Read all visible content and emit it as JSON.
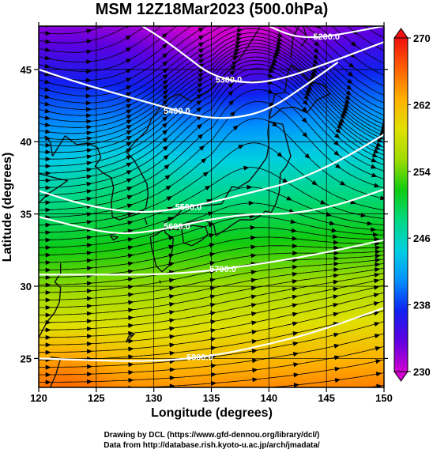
{
  "chart_data": {
    "type": "heatmap",
    "title": "MSM 12Z18Mar2023 (500.0hPa)",
    "xlabel": "Longitude (degrees)",
    "ylabel": "Latitude  (degrees)",
    "xlim": [
      120,
      150
    ],
    "ylim": [
      23,
      48
    ],
    "xticks": [
      "120",
      "125",
      "130",
      "135",
      "140",
      "145",
      "150"
    ],
    "yticks": [
      "25",
      "30",
      "35",
      "40",
      "45"
    ],
    "colorbar": {
      "range": [
        230,
        270
      ],
      "ticks": [
        "230",
        "238",
        "246",
        "254",
        "262",
        "270"
      ],
      "colors": [
        "#d000d0",
        "#6000e0",
        "#1020f0",
        "#0090ff",
        "#00d0e0",
        "#00d880",
        "#10cc10",
        "#a0dc00",
        "#e0e000",
        "#ffb000",
        "#ff6000",
        "#f01010"
      ]
    },
    "contours": [
      {
        "label": "5400.0",
        "lon": [
          120,
          123,
          126,
          130,
          134,
          137,
          140,
          143,
          146
        ],
        "lat": [
          45.0,
          44.2,
          43.5,
          42.6,
          41.7,
          41.6,
          42.2,
          43.8,
          45.5
        ]
      },
      {
        "label": "5500.0",
        "lon": [
          120,
          124,
          128,
          131,
          135,
          139,
          142,
          146,
          150
        ],
        "lat": [
          36.6,
          35.6,
          35.1,
          35.2,
          35.8,
          36.6,
          37.2,
          38.6,
          40.5
        ]
      },
      {
        "label": "5600.0",
        "lon": [
          120,
          124,
          127,
          130,
          134,
          138,
          142,
          146,
          150
        ],
        "lat": [
          34.8,
          34.0,
          33.6,
          33.8,
          34.5,
          35.0,
          35.0,
          35.6,
          36.7
        ]
      },
      {
        "label": "5700.0",
        "lon": [
          120,
          125,
          130,
          134,
          138,
          142,
          146,
          150
        ],
        "lat": [
          30.8,
          30.8,
          30.8,
          31.0,
          31.4,
          31.9,
          32.5,
          33.2
        ]
      },
      {
        "label": "5800.0",
        "lon": [
          120,
          124,
          128,
          132,
          136,
          140,
          144,
          150
        ],
        "lat": [
          25.0,
          24.9,
          24.8,
          24.9,
          25.3,
          26.0,
          26.8,
          28.5
        ]
      },
      {
        "label": "5300.0",
        "lon": [
          129,
          131,
          133,
          135,
          138,
          141,
          145,
          150
        ],
        "lat": [
          48,
          47.0,
          45.8,
          44.6,
          44.0,
          44.3,
          45.4,
          46.9
        ]
      },
      {
        "label": "5200.0",
        "lon": [
          140,
          142,
          144,
          146,
          148,
          150
        ],
        "lat": [
          48,
          47.3,
          47.2,
          47.4,
          47.7,
          48
        ]
      }
    ],
    "legend": "none",
    "grid": true
  },
  "credits": {
    "line1": "Drawing by DCL (https://www.gfd-dennou.org/library/dcl/)",
    "line2": "Data from http://database.rish.kyoto-u.ac.jp/arch/jmadata/"
  }
}
